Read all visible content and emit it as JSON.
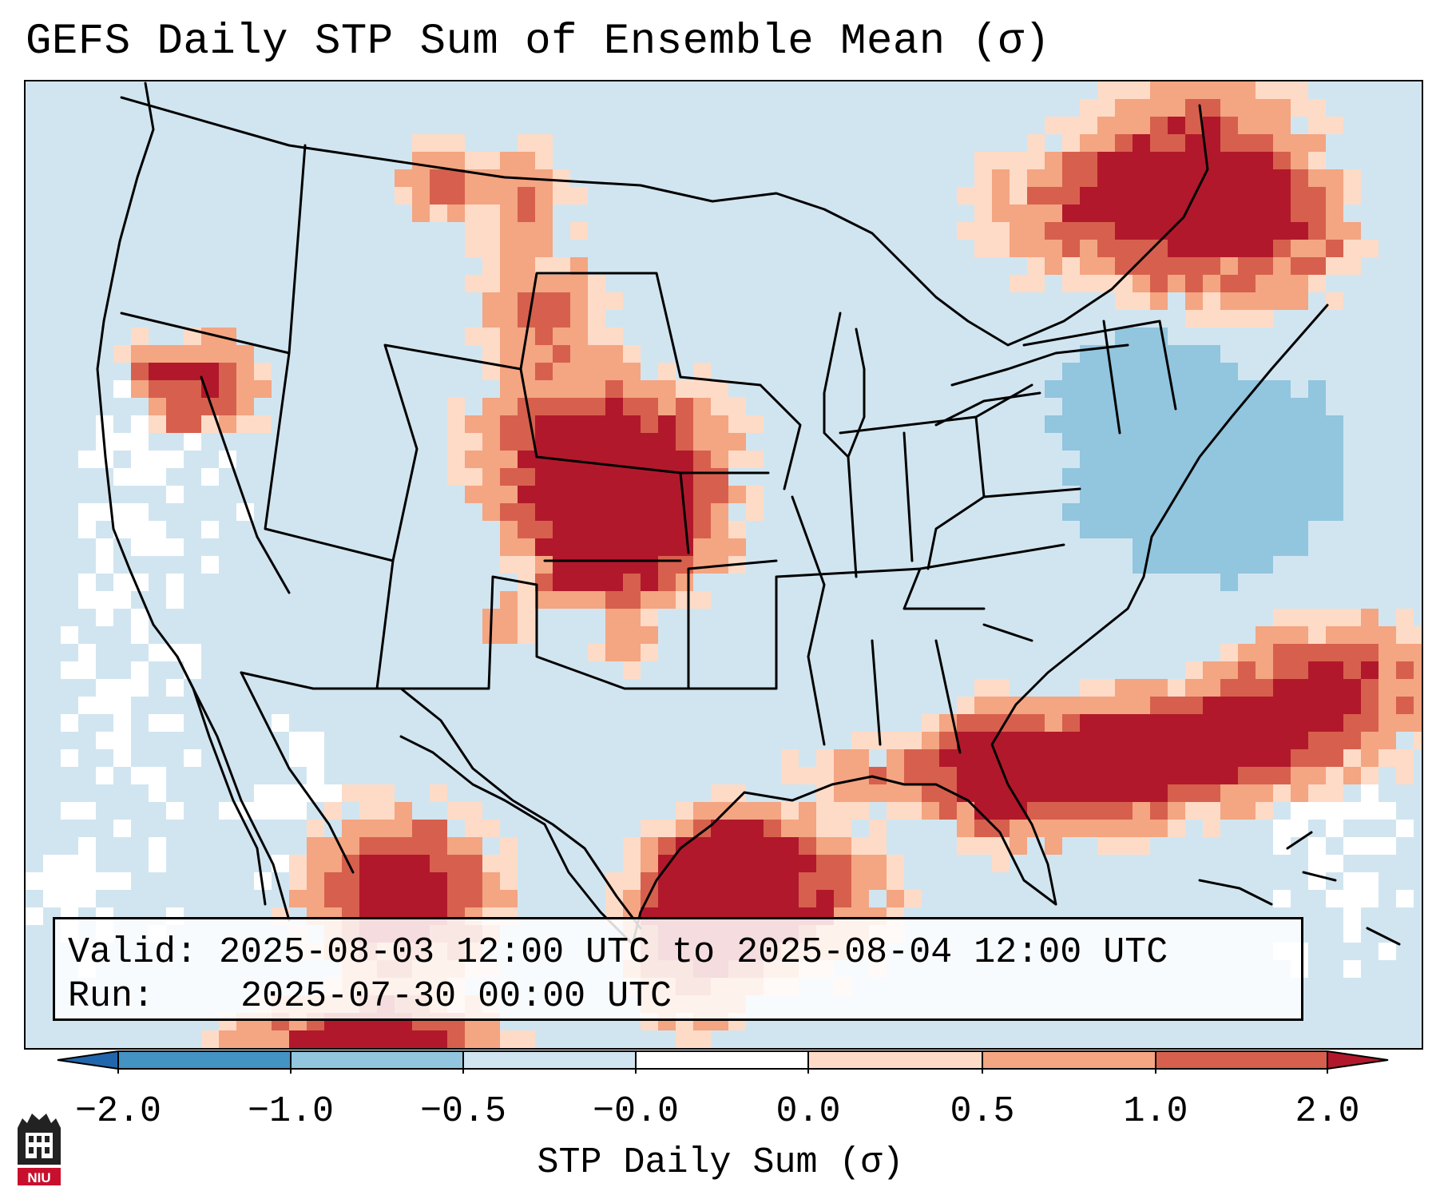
{
  "title": "GEFS Daily STP Sum of Ensemble Mean (σ)",
  "info": {
    "valid_label": "Valid:",
    "valid_value": "2025-08-03 12:00 UTC to 2025-08-04 12:00 UTC",
    "run_label": "Run:",
    "run_value": "2025-07-30 00:00 UTC"
  },
  "colorbar": {
    "label": "STP Daily Sum (σ)",
    "tick_labels": [
      "−2.0",
      "−1.0",
      "−0.5",
      "−0.0",
      "0.0",
      "0.5",
      "1.0",
      "2.0"
    ],
    "bins": [
      {
        "range": "< -2.0",
        "color": "#2166ac"
      },
      {
        "range": "-2.0 to -1.0",
        "color": "#4393c3"
      },
      {
        "range": "-1.0 to -0.5",
        "color": "#92c5de"
      },
      {
        "range": "-0.5 to -0.0",
        "color": "#d1e5f0"
      },
      {
        "range": "-0.0 to 0.0",
        "color": "#ffffff"
      },
      {
        "range": "0.0 to 0.5",
        "color": "#fddbc7"
      },
      {
        "range": "0.5 to 1.0",
        "color": "#f4a582"
      },
      {
        "range": "1.0 to 2.0",
        "color": "#d6604d"
      },
      {
        "range": "> 2.0",
        "color": "#b2182b"
      }
    ]
  },
  "logo": {
    "text": "NIU",
    "name": "niu-logo"
  },
  "map": {
    "region": "Contiguous United States",
    "background_color": "#d1e5f0",
    "anomaly_areas": [
      {
        "area": "Northern & central Plains (Montana/Dakotas/Nebraska/Kansas)",
        "category": "positive",
        "max_sigma": 2.0
      },
      {
        "area": "Gulf Coast – Texas coast & Louisiana",
        "category": "positive",
        "max_sigma": 2.0
      },
      {
        "area": "Southeast – Georgia & northern Florida, offshore Atlantic",
        "category": "positive",
        "max_sigma": 2.0
      },
      {
        "area": "Northern Mexico (Sierra Madre)",
        "category": "positive",
        "max_sigma": 2.0
      },
      {
        "area": "Southern Quebec / northern Maine",
        "category": "positive",
        "max_sigma": 2.0
      },
      {
        "area": "Northeast US – New York / Pennsylvania / offshore",
        "category": "negative",
        "max_sigma": -0.5
      },
      {
        "area": "California / Pacific coast",
        "category": "near-zero",
        "max_sigma": 0.0
      }
    ]
  }
}
